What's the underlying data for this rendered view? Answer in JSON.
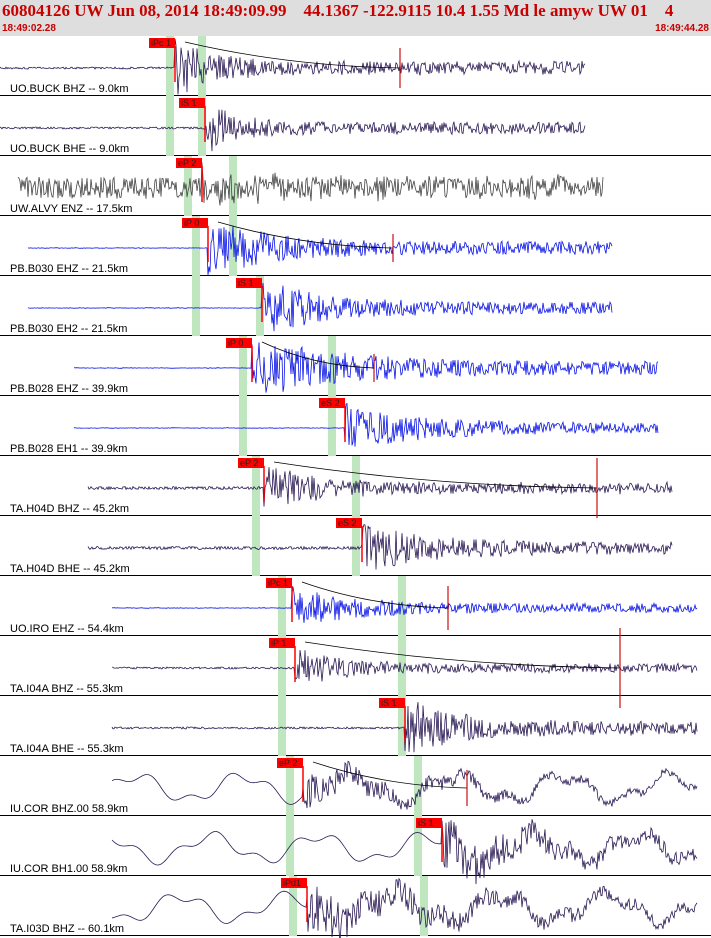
{
  "header": {
    "title": "60804126 UW Jun 08, 2014 18:49:09.99    44.1367 -122.9115 10.4 1.55 Md le amyw UW 01    4",
    "time_start": "18:49:02.28",
    "time_end": "18:49:44.28"
  },
  "colors": {
    "background": "#ffffff",
    "header_bg": "#dedede",
    "header_text": "#c80000",
    "pick_flag": "#ff0000",
    "wait_bar": "#bfe6bf",
    "trace_dark": "#2a1a55",
    "trace_blue": "#0a14e6",
    "trace_gray": "#444444",
    "synthetic": "#cc1111"
  },
  "channels": [
    {
      "label": "UO.BUCK BHZ -- 9.0km",
      "pick": "iPc 1",
      "color": "dark"
    },
    {
      "label": "UO.BUCK BHE -- 9.0km",
      "pick": "iS 1",
      "color": "dark"
    },
    {
      "label": "UW.ALVY ENZ -- 17.5km",
      "pick": "eP 2",
      "color": "gray"
    },
    {
      "label": "PB.B030 EHZ -- 21.5km",
      "pick": "iP 0",
      "color": "blue"
    },
    {
      "label": "PB.B030 EH2 -- 21.5km",
      "pick": "iS 1",
      "color": "blue"
    },
    {
      "label": "PB.B028 EHZ -- 39.9km",
      "pick": "iP 0",
      "color": "blue"
    },
    {
      "label": "PB.B028 EH1 -- 39.9km",
      "pick": "eS 2",
      "color": "blue"
    },
    {
      "label": "TA.H04D BHZ -- 45.2km",
      "pick": "eP 2",
      "color": "dark"
    },
    {
      "label": "TA.H04D BHE -- 45.2km",
      "pick": "eS 2",
      "color": "dark"
    },
    {
      "label": "UO.IRO EHZ -- 54.4km",
      "pick": "iPc 1",
      "color": "blue"
    },
    {
      "label": "TA.I04A BHZ -- 55.3km",
      "pick": "iP 1",
      "color": "dark"
    },
    {
      "label": "TA.I04A BHE -- 55.3km",
      "pick": "iS 1",
      "color": "dark"
    },
    {
      "label": "IU.COR BHZ.00 58.9km",
      "pick": "eP 2",
      "color": "dark"
    },
    {
      "label": "IU.COR BH1.00 58.9km",
      "pick": "iS 1",
      "color": "dark"
    },
    {
      "label": "TA.I03D BHZ -- 60.1km",
      "pick": "iPd1",
      "color": "dark"
    }
  ]
}
